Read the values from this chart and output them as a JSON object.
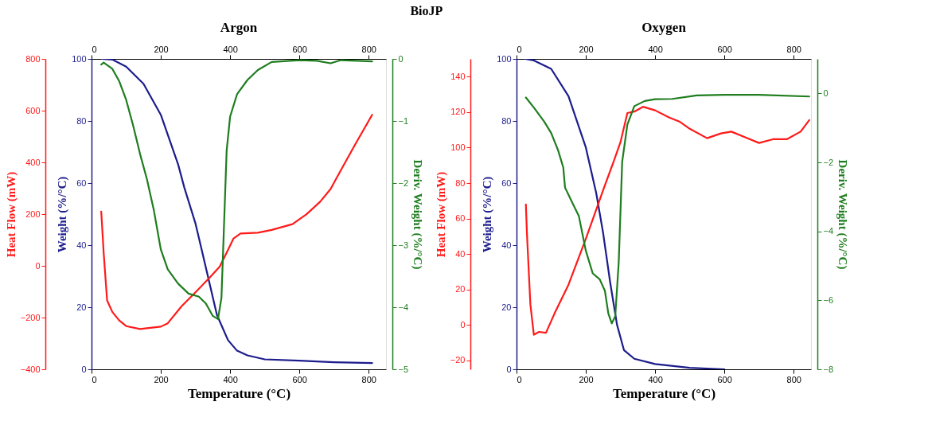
{
  "chart_data": [
    {
      "type": "line",
      "title": "Argon",
      "annotations": [
        "BioJP"
      ],
      "xlabel": "Temperature (°C)",
      "ylabel": "Weight (%/°C)",
      "y2label": "Deriv. Weight (%/°C)",
      "y3label": "Heat Flow (mW)",
      "xlim": [
        0,
        850
      ],
      "xticks": [
        0,
        200,
        400,
        600,
        800
      ],
      "x2lim": [
        0,
        850
      ],
      "x2ticks": [
        0,
        200,
        400,
        600,
        800
      ],
      "ylim": [
        0,
        100
      ],
      "yticks": [
        0,
        20,
        40,
        60,
        80,
        100
      ],
      "y2lim": [
        -5,
        0
      ],
      "y2ticks": [
        -5,
        -4,
        -3,
        -2,
        -1,
        0
      ],
      "y3lim": [
        -400,
        800
      ],
      "y3ticks": [
        -400,
        -200,
        0,
        200,
        400,
        600,
        800
      ],
      "series": [
        {
          "color": "#1c1c8c",
          "axis": "y",
          "x": [
            30,
            60,
            100,
            150,
            200,
            250,
            268,
            300,
            318,
            340,
            362,
            394,
            420,
            450,
            500,
            600,
            700,
            810
          ],
          "values": [
            100,
            99.8,
            97.5,
            92,
            82,
            66,
            58.5,
            47,
            38.5,
            28,
            17.5,
            9.4,
            6,
            4.5,
            3.2,
            2.8,
            2.3,
            2
          ]
        },
        {
          "color": "#ff1a1a",
          "axis": "y3",
          "x": [
            28,
            35,
            45,
            60,
            80,
            100,
            140,
            200,
            220,
            260,
            300,
            340,
            370,
            390,
            410,
            430,
            480,
            520,
            580,
            620,
            660,
            690,
            710,
            760,
            810
          ],
          "values": [
            210,
            51,
            -134,
            -178,
            -211,
            -233,
            -244,
            -235,
            -222,
            -156,
            -102,
            -47,
            -3,
            51,
            106,
            125,
            128,
            139,
            161,
            199,
            248,
            297,
            346,
            467,
            584
          ]
        },
        {
          "color": "#1e7d1e",
          "axis": "y2",
          "x": [
            28,
            35,
            60,
            80,
            100,
            120,
            140,
            160,
            180,
            200,
            220,
            250,
            280,
            310,
            330,
            350,
            365,
            375,
            382,
            390,
            400,
            420,
            450,
            480,
            520,
            600,
            650,
            690,
            720,
            810
          ],
          "values": [
            -0.09,
            -0.06,
            -0.16,
            -0.36,
            -0.66,
            -1.07,
            -1.53,
            -1.94,
            -2.44,
            -3.07,
            -3.39,
            -3.62,
            -3.78,
            -3.83,
            -3.94,
            -4.14,
            -4.19,
            -3.85,
            -2.75,
            -1.48,
            -0.93,
            -0.57,
            -0.34,
            -0.18,
            -0.05,
            -0.02,
            -0.03,
            -0.07,
            -0.02,
            -0.04
          ]
        }
      ]
    },
    {
      "type": "line",
      "title": "Oxygen",
      "xlabel": "Temperature (°C)",
      "ylabel": "Weight (%/°C)",
      "y2label": "Deriv. Weight (%/°C)",
      "y3label": "Heat Flow (mW)",
      "xlim": [
        0,
        850
      ],
      "xticks": [
        0,
        200,
        400,
        600,
        800
      ],
      "x2lim": [
        0,
        850
      ],
      "x2ticks": [
        0,
        200,
        400,
        600,
        800
      ],
      "ylim": [
        0,
        100
      ],
      "yticks": [
        0,
        20,
        40,
        60,
        80,
        100
      ],
      "y2lim": [
        -8,
        1
      ],
      "y2ticks": [
        -8,
        -6,
        -4,
        -2,
        0
      ],
      "y3lim": [
        -25,
        150
      ],
      "y3ticks": [
        -20,
        0,
        20,
        40,
        60,
        80,
        100,
        120,
        140
      ],
      "series": [
        {
          "color": "#1c1c8c",
          "axis": "y",
          "x": [
            25,
            50,
            100,
            150,
            200,
            230,
            250,
            270,
            290,
            310,
            340,
            400,
            500,
            600
          ],
          "values": [
            100,
            99.5,
            96.8,
            88,
            71.5,
            56.8,
            43.9,
            28.2,
            14.4,
            6.2,
            3.4,
            1.7,
            0.5,
            0
          ]
        },
        {
          "color": "#ff1a1a",
          "axis": "y3",
          "x": [
            27,
            30,
            40,
            50,
            65,
            85,
            110,
            150,
            200,
            250,
            280,
            300,
            320,
            340,
            365,
            400,
            440,
            470,
            500,
            550,
            590,
            620,
            660,
            700,
            740,
            780,
            820,
            845
          ],
          "values": [
            67.9,
            51.8,
            11.5,
            -5.5,
            -3.9,
            -4.4,
            6.6,
            22.7,
            48.5,
            76,
            92,
            103,
            119.5,
            120.3,
            123,
            121,
            117,
            114.7,
            110.6,
            105.3,
            108,
            109,
            105.8,
            102.6,
            104.7,
            104.7,
            109,
            115.5
          ]
        },
        {
          "color": "#1e7d1e",
          "axis": "y2",
          "x": [
            27,
            50,
            80,
            100,
            120,
            135,
            140,
            160,
            180,
            200,
            220,
            240,
            255,
            265,
            275,
            285,
            295,
            305,
            320,
            340,
            370,
            400,
            450,
            520,
            600,
            700,
            845
          ],
          "values": [
            -0.12,
            -0.41,
            -0.82,
            -1.15,
            -1.65,
            -2.15,
            -2.73,
            -3.15,
            -3.56,
            -4.56,
            -5.22,
            -5.39,
            -5.72,
            -6.38,
            -6.67,
            -6.46,
            -4.89,
            -1.98,
            -0.9,
            -0.37,
            -0.22,
            -0.17,
            -0.16,
            -0.06,
            -0.04,
            -0.04,
            -0.09
          ]
        }
      ]
    }
  ]
}
